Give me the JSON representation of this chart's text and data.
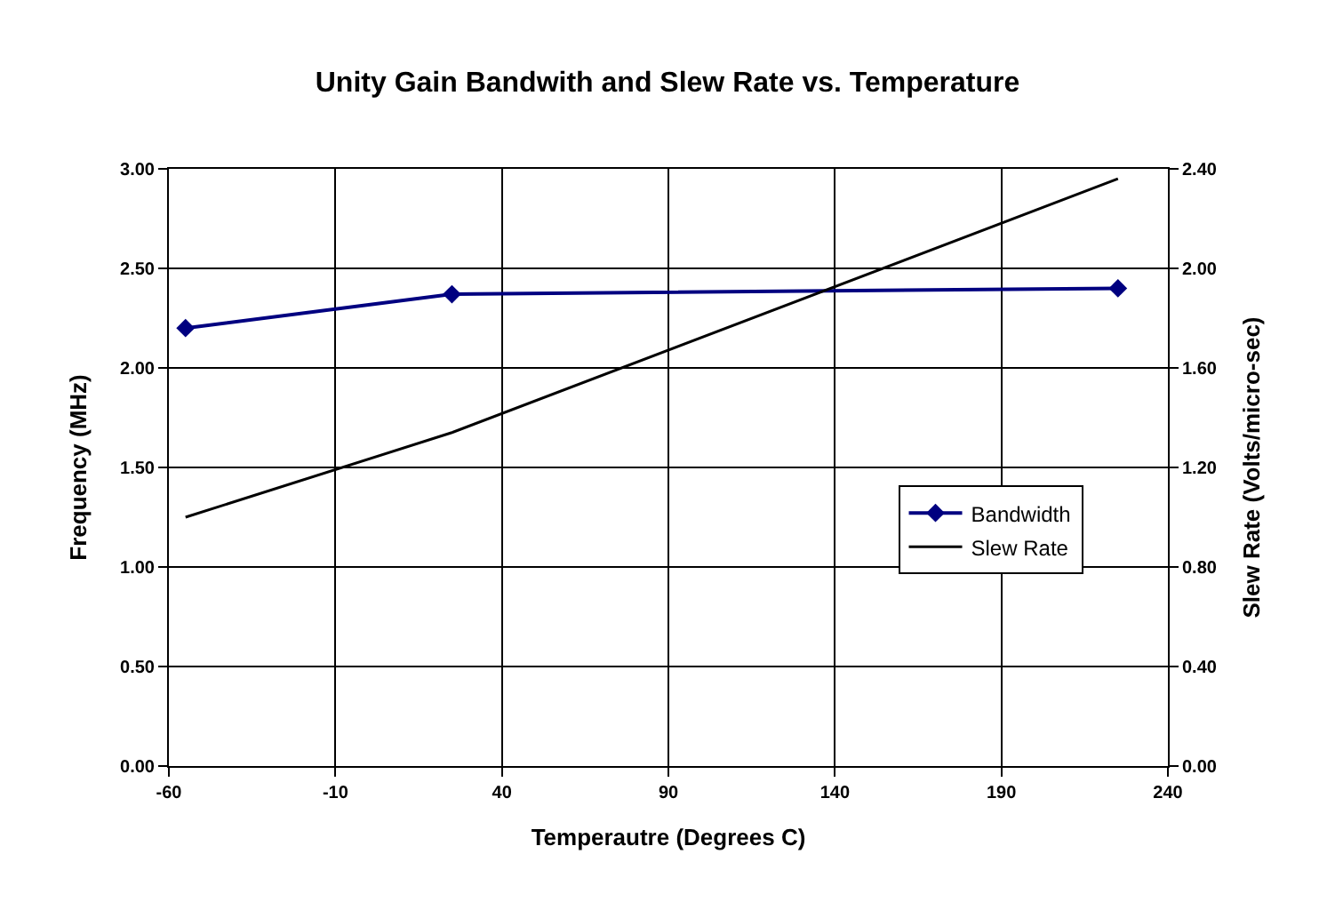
{
  "chart_data": {
    "type": "line",
    "title": "Unity Gain Bandwith and Slew Rate vs. Temperature",
    "xlabel": "Temperautre (Degrees C)",
    "ylabel": "Frequency (MHz)",
    "y2label": "Slew Rate (Volts/micro-sec)",
    "xlim": [
      -60,
      240
    ],
    "xticks": [
      -60,
      -10,
      40,
      90,
      140,
      190,
      240
    ],
    "ylim": [
      0,
      3
    ],
    "yticks": [
      {
        "value": 0,
        "label": "0.00"
      },
      {
        "value": 0.5,
        "label": "0.50"
      },
      {
        "value": 1,
        "label": "1.00"
      },
      {
        "value": 1.5,
        "label": "1.50"
      },
      {
        "value": 2,
        "label": "2.00"
      },
      {
        "value": 2.5,
        "label": "2.50"
      },
      {
        "value": 3,
        "label": "3.00"
      }
    ],
    "y2lim": [
      0,
      2.4
    ],
    "y2ticks": [
      {
        "value": 0,
        "label": "0.00"
      },
      {
        "value": 0.4,
        "label": "0.40"
      },
      {
        "value": 0.8,
        "label": "0.80"
      },
      {
        "value": 1.2,
        "label": "1.20"
      },
      {
        "value": 1.6,
        "label": "1.60"
      },
      {
        "value": 2.0,
        "label": "2.00"
      },
      {
        "value": 2.4,
        "label": "2.40"
      }
    ],
    "x": [
      -55,
      25,
      225
    ],
    "series": [
      {
        "name": "Bandwidth",
        "color": "#000080",
        "values": [
          2.2,
          2.37,
          2.4
        ],
        "marker": "diamond"
      },
      {
        "name": "Slew Rate",
        "color": "#000000",
        "values": [
          1.0,
          1.34,
          2.36
        ],
        "axis": "y2",
        "marker": "none"
      }
    ],
    "grid": true,
    "legend": "right"
  }
}
